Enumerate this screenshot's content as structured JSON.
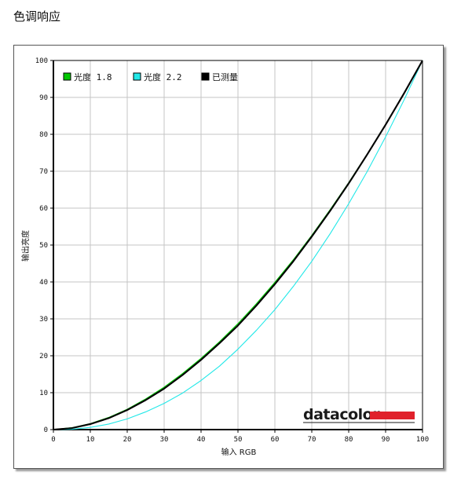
{
  "page": {
    "title": "色调响应"
  },
  "brand": {
    "name": "datacolor",
    "accent_color": "#e0212b"
  },
  "chart_data": {
    "type": "line",
    "title": "",
    "xlabel": "输入 RGB",
    "ylabel": "输出亮度",
    "xlim": [
      0,
      100
    ],
    "ylim": [
      0,
      100
    ],
    "xticks": [
      0,
      10,
      20,
      30,
      40,
      50,
      60,
      70,
      80,
      90,
      100
    ],
    "yticks": [
      0,
      10,
      20,
      30,
      40,
      50,
      60,
      70,
      80,
      90,
      100
    ],
    "grid": true,
    "legend_position": "top-left",
    "x": [
      0,
      5,
      10,
      15,
      20,
      25,
      30,
      35,
      40,
      45,
      50,
      55,
      60,
      65,
      70,
      75,
      80,
      85,
      90,
      95,
      100
    ],
    "series": [
      {
        "name": "光度 1.8",
        "color": "#00c800",
        "values": [
          0,
          0.5,
          1.6,
          3.3,
          5.5,
          8.3,
          11.5,
          15.2,
          19.3,
          23.8,
          28.7,
          34.1,
          39.9,
          46.0,
          52.6,
          59.6,
          66.9,
          74.6,
          82.7,
          91.2,
          100
        ]
      },
      {
        "name": "光度 2.2",
        "color": "#22e8e8",
        "values": [
          0,
          0.1,
          0.6,
          1.5,
          2.9,
          4.8,
          7.1,
          9.9,
          13.3,
          17.2,
          21.8,
          26.9,
          32.5,
          38.8,
          45.6,
          53.1,
          61.2,
          69.9,
          79.3,
          89.3,
          100
        ]
      },
      {
        "name": "已测量",
        "color": "#000000",
        "values": [
          0,
          0.4,
          1.5,
          3.1,
          5.3,
          8.0,
          11.1,
          14.8,
          18.9,
          23.4,
          28.2,
          33.6,
          39.4,
          45.6,
          52.3,
          59.3,
          66.7,
          74.5,
          82.6,
          91.1,
          100
        ]
      }
    ]
  }
}
